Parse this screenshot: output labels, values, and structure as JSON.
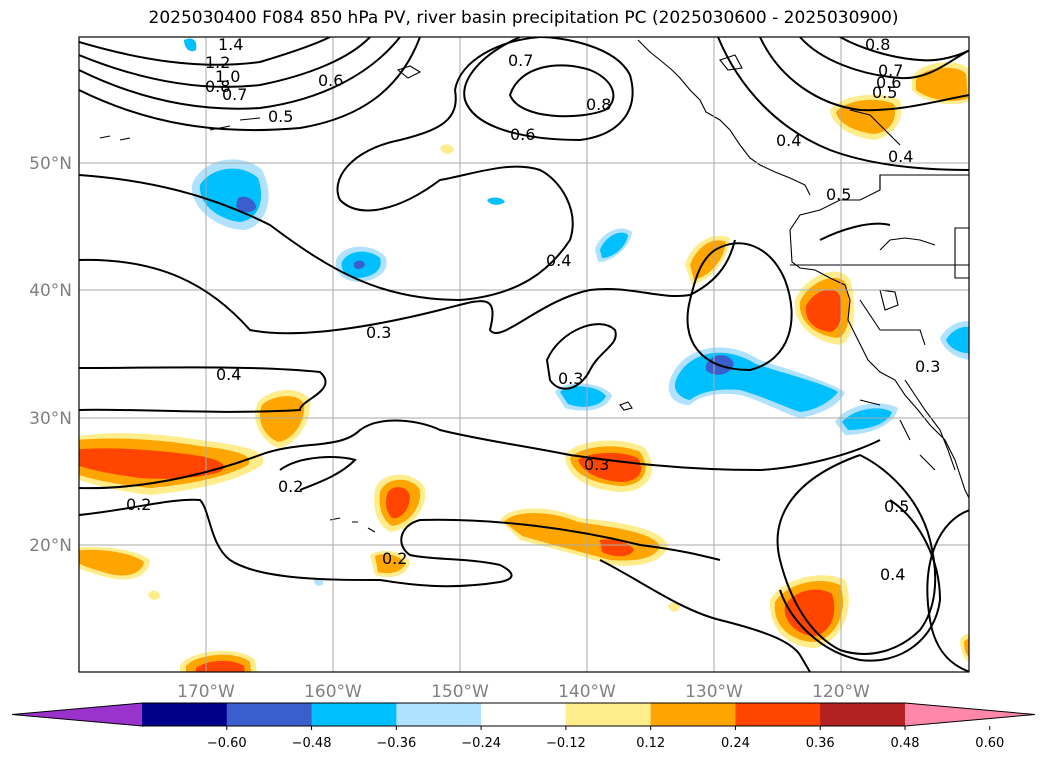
{
  "title": "2025030400 F084 850 hPa PV, river basin precipitation PC (2025030600 - 2025030900)",
  "axes": {
    "lat_labels": [
      "50°N",
      "40°N",
      "30°N",
      "20°N"
    ],
    "lon_labels": [
      "170°W",
      "160°W",
      "150°W",
      "140°W",
      "130°W",
      "120°W"
    ]
  },
  "colorbar": {
    "ticks": [
      "−0.60",
      "−0.48",
      "−0.36",
      "−0.24",
      "−0.12",
      "0.12",
      "0.24",
      "0.36",
      "0.48",
      "0.60"
    ],
    "colors": [
      "#9933cc",
      "#00008b",
      "#3a5fcd",
      "#00bfff",
      "#b0e2ff",
      "#ffffff",
      "#ffec8b",
      "#ffa500",
      "#ff4500",
      "#b22222",
      "#ff88aa"
    ]
  },
  "contour_labels": [
    "1.4",
    "1.2",
    "1.0",
    "0.8",
    "0.7",
    "0.6",
    "0.5",
    "0.7",
    "0.8",
    "0.6",
    "0.4",
    "0.3",
    "0.4",
    "0.3",
    "0.2",
    "0.2",
    "0.2",
    "0.3",
    "0.5",
    "0.4",
    "0.3",
    "0.8",
    "0.7",
    "0.6",
    "0.5",
    "0.4",
    "0.4",
    "0.5"
  ]
}
